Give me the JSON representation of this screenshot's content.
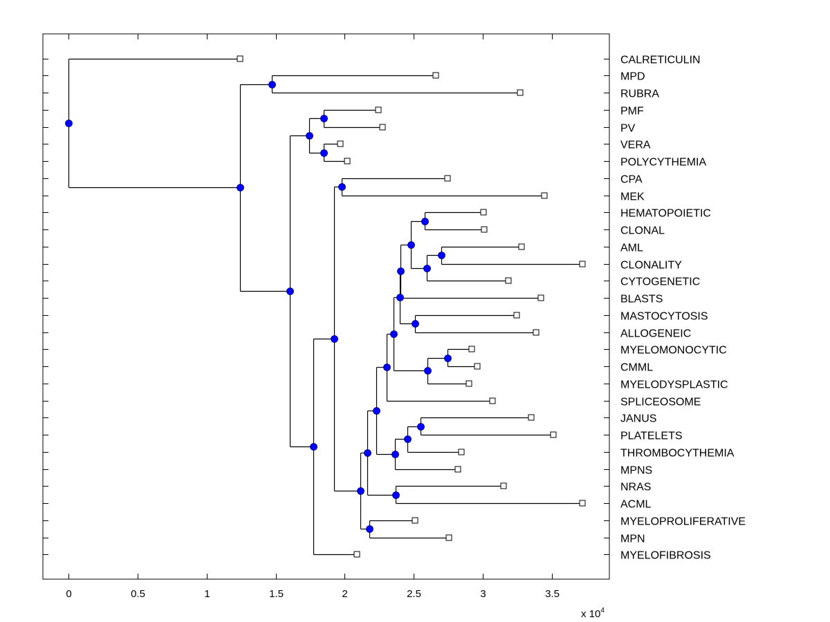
{
  "chart_data": {
    "type": "dendrogram",
    "title": "",
    "xlabel": "",
    "ylabel": "",
    "x_multiplier_label": "x 10",
    "x_multiplier_exponent": "4",
    "xlim": [
      -0.185,
      3.915
    ],
    "x_ticks": [
      0,
      0.5,
      1,
      1.5,
      2,
      2.5,
      3,
      3.5
    ],
    "x_tick_labels": [
      "0",
      "0.5",
      "1",
      "1.5",
      "2",
      "2.5",
      "3",
      "3.5"
    ],
    "grid": false,
    "branch_color": "#000000",
    "node_color": "#0000ff",
    "leaf_marker_color": "#ffffff",
    "leaves": [
      {
        "id": "CALRETICULIN",
        "label": "CALRETICULIN",
        "x": 1.24
      },
      {
        "id": "MPD",
        "label": "MPD",
        "x": 2.66
      },
      {
        "id": "RUBRA",
        "label": "RUBRA",
        "x": 3.27
      },
      {
        "id": "PMF",
        "label": "PMF",
        "x": 2.245
      },
      {
        "id": "PV",
        "label": "PV",
        "x": 2.275
      },
      {
        "id": "VERA",
        "label": "VERA",
        "x": 1.97
      },
      {
        "id": "POLYCYTHEMIA",
        "label": "POLYCYTHEMIA",
        "x": 2.02
      },
      {
        "id": "CPA",
        "label": "CPA",
        "x": 2.745
      },
      {
        "id": "MEK",
        "label": "MEK",
        "x": 3.445
      },
      {
        "id": "HEMATOPOIETIC",
        "label": "HEMATOPOIETIC",
        "x": 3.005
      },
      {
        "id": "CLONAL",
        "label": "CLONAL",
        "x": 3.01
      },
      {
        "id": "AML",
        "label": "AML",
        "x": 3.28
      },
      {
        "id": "CLONALITY",
        "label": "CLONALITY",
        "x": 3.72
      },
      {
        "id": "CYTOGENETIC",
        "label": "CYTOGENETIC",
        "x": 3.185
      },
      {
        "id": "BLASTS",
        "label": "BLASTS",
        "x": 3.42
      },
      {
        "id": "MASTOCYTOSIS",
        "label": "MASTOCYTOSIS",
        "x": 3.245
      },
      {
        "id": "ALLOGENEIC",
        "label": "ALLOGENEIC",
        "x": 3.385
      },
      {
        "id": "MYELOMONOCYTIC",
        "label": "MYELOMONOCYTIC",
        "x": 2.92
      },
      {
        "id": "CMML",
        "label": "CMML",
        "x": 2.96
      },
      {
        "id": "MYELODYSPLASTIC",
        "label": "MYELODYSPLASTIC",
        "x": 2.9
      },
      {
        "id": "SPLICEOSOME",
        "label": "SPLICEOSOME",
        "x": 3.07
      },
      {
        "id": "JANUS",
        "label": "JANUS",
        "x": 3.35
      },
      {
        "id": "PLATELETS",
        "label": "PLATELETS",
        "x": 3.51
      },
      {
        "id": "THROMBOCYTHEMIA",
        "label": "THROMBOCYTHEMIA",
        "x": 2.845
      },
      {
        "id": "MPNS",
        "label": "MPNS",
        "x": 2.82
      },
      {
        "id": "NRAS",
        "label": "NRAS",
        "x": 3.15
      },
      {
        "id": "ACML",
        "label": "ACML",
        "x": 3.72
      },
      {
        "id": "MYELOPROLIFERATIVE",
        "label": "MYELOPROLIFERATIVE",
        "x": 2.51
      },
      {
        "id": "MPN",
        "label": "MPN",
        "x": 2.755
      },
      {
        "id": "MYELOFIBROSIS",
        "label": "MYELOFIBROSIS",
        "x": 2.09
      }
    ],
    "internal_nodes": [
      {
        "id": "n_janus_platelets",
        "x": 2.55,
        "children": [
          "JANUS",
          "PLATELETS"
        ]
      },
      {
        "id": "n_thrombo",
        "x": 2.455,
        "children": [
          "n_janus_platelets",
          "THROMBOCYTHEMIA"
        ]
      },
      {
        "id": "n_mpns",
        "x": 2.365,
        "children": [
          "n_thrombo",
          "MPNS"
        ]
      },
      {
        "id": "n_nras_acml",
        "x": 2.37,
        "children": [
          "NRAS",
          "ACML"
        ]
      },
      {
        "id": "n_mpn",
        "x": 2.18,
        "children": [
          "MYELOPROLIFERATIVE",
          "MPN"
        ]
      },
      {
        "id": "n_mmono_cmml",
        "x": 2.745,
        "children": [
          "MYELOMONOCYTIC",
          "CMML"
        ]
      },
      {
        "id": "n_cmml_group",
        "x": 2.6,
        "children": [
          "n_mmono_cmml",
          "MYELODYSPLASTIC"
        ]
      },
      {
        "id": "n_aml_clonality",
        "x": 2.7,
        "children": [
          "AML",
          "CLONALITY"
        ]
      },
      {
        "id": "n_cytogenetic",
        "x": 2.595,
        "children": [
          "n_aml_clonality",
          "CYTOGENETIC"
        ]
      },
      {
        "id": "n_hema_clonal",
        "x": 2.58,
        "children": [
          "HEMATOPOIETIC",
          "CLONAL"
        ]
      },
      {
        "id": "n_clonal_group",
        "x": 2.48,
        "children": [
          "n_hema_clonal",
          "n_cytogenetic"
        ]
      },
      {
        "id": "n_blasts",
        "x": 2.405,
        "children": [
          "n_clonal_group",
          "BLASTS"
        ]
      },
      {
        "id": "n_masto_allo",
        "x": 2.51,
        "children": [
          "MASTOCYTOSIS",
          "ALLOGENEIC"
        ]
      },
      {
        "id": "n_blasts_masto",
        "x": 2.4,
        "children": [
          "n_blasts",
          "n_masto_allo"
        ]
      },
      {
        "id": "n_mds_group",
        "x": 2.355,
        "children": [
          "n_blasts_masto",
          "n_cmml_group"
        ]
      },
      {
        "id": "n_spliceosome",
        "x": 2.305,
        "children": [
          "n_mds_group",
          "SPLICEOSOME"
        ]
      },
      {
        "id": "n_spl_mpns",
        "x": 2.23,
        "children": [
          "n_spliceosome",
          "n_mpns"
        ]
      },
      {
        "id": "n_nras_join",
        "x": 2.165,
        "children": [
          "n_spl_mpns",
          "n_nras_acml"
        ]
      },
      {
        "id": "n_mpn_join",
        "x": 2.115,
        "children": [
          "n_nras_join",
          "n_mpn"
        ]
      },
      {
        "id": "n_cpa_mek",
        "x": 1.98,
        "children": [
          "CPA",
          "MEK"
        ]
      },
      {
        "id": "n_cpa_join",
        "x": 1.925,
        "children": [
          "n_cpa_mek",
          "n_mpn_join"
        ]
      },
      {
        "id": "n_myelofibrosis",
        "x": 1.77,
        "children": [
          "n_cpa_join",
          "MYELOFIBROSIS"
        ]
      },
      {
        "id": "n_pmf_pv",
        "x": 1.845,
        "children": [
          "PMF",
          "PV"
        ]
      },
      {
        "id": "n_vera_poly",
        "x": 1.845,
        "children": [
          "VERA",
          "POLYCYTHEMIA"
        ]
      },
      {
        "id": "n_pv_group",
        "x": 1.74,
        "children": [
          "n_pmf_pv",
          "n_vera_poly"
        ]
      },
      {
        "id": "n_main",
        "x": 1.6,
        "children": [
          "n_pv_group",
          "n_myelofibrosis"
        ]
      },
      {
        "id": "n_mpd_rubra",
        "x": 1.47,
        "children": [
          "MPD",
          "RUBRA"
        ]
      },
      {
        "id": "n_upper",
        "x": 1.24,
        "children": [
          "n_mpd_rubra",
          "n_main"
        ]
      },
      {
        "id": "n_root",
        "x": 0.0,
        "children": [
          "CALRETICULIN",
          "n_upper"
        ]
      }
    ]
  }
}
